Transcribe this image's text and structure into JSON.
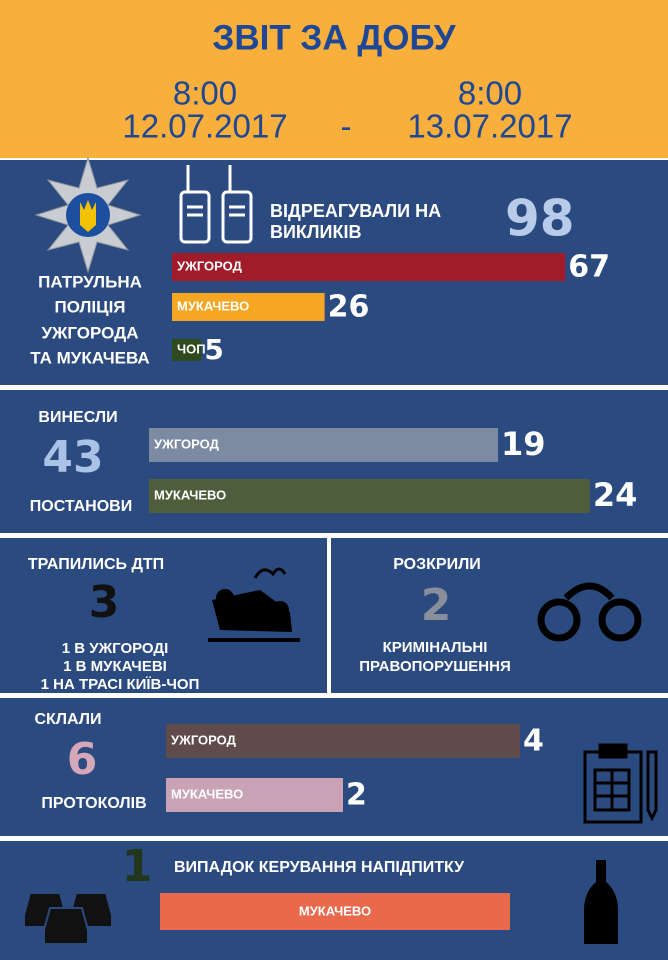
{
  "header": {
    "title": "ЗВІТ ЗА ДОБУ",
    "from_time": "8:00",
    "from_date": "12.07.2017",
    "separator": "-",
    "to_time": "8:00",
    "to_date": "13.07.2017"
  },
  "calls": {
    "org_lines": [
      "ПАТРУЛЬНА",
      "ПОЛІЦІЯ",
      "УЖГОРОДА",
      "ТА МУКАЧЕВА"
    ],
    "title_lines": [
      "ВІДРЕАГУВАЛИ НА",
      "ВИКЛИКІВ"
    ],
    "total": 98,
    "bars": [
      {
        "label": "УЖГОРОД",
        "value": 67,
        "color": "#a11c2b"
      },
      {
        "label": "МУКАЧЕВО",
        "value": 26,
        "color": "#f5a623"
      },
      {
        "label": "ЧОП",
        "value": 5,
        "color": "#2f4a1d"
      }
    ]
  },
  "rulings": {
    "top": "ВИНЕСЛИ",
    "total": 43,
    "bottom": "ПОСТАНОВИ",
    "bars": [
      {
        "label": "УЖГОРОД",
        "value": 19,
        "color": "#7d8ba2"
      },
      {
        "label": "МУКАЧЕВО",
        "value": 24,
        "color": "#4e5d3b"
      }
    ]
  },
  "accidents": {
    "title": "ТРАПИЛИСЬ ДТП",
    "total": 3,
    "lines": [
      "1 В УЖГОРОДІ",
      "1 В МУКАЧЕВІ",
      "1 НА ТРАСІ КИЇВ-ЧОП"
    ]
  },
  "crimes": {
    "title": "РОЗКРИЛИ",
    "total": 2,
    "lines": [
      "КРИМІНАЛЬНІ",
      "ПРАВОПОРУШЕННЯ"
    ]
  },
  "protocols": {
    "top": "СКЛАЛИ",
    "total": 6,
    "bottom": "ПРОТОКОЛІВ",
    "bars": [
      {
        "label": "УЖГОРОД",
        "value": 4,
        "color": "#5e4b4a"
      },
      {
        "label": "МУКАЧЕВО",
        "value": 2,
        "color": "#c9a3b5"
      }
    ]
  },
  "dui": {
    "total": 1,
    "title": "ВИПАДОК КЕРУВАННЯ НАПІДПИТКУ",
    "place": "МУКАЧЕВО"
  }
}
